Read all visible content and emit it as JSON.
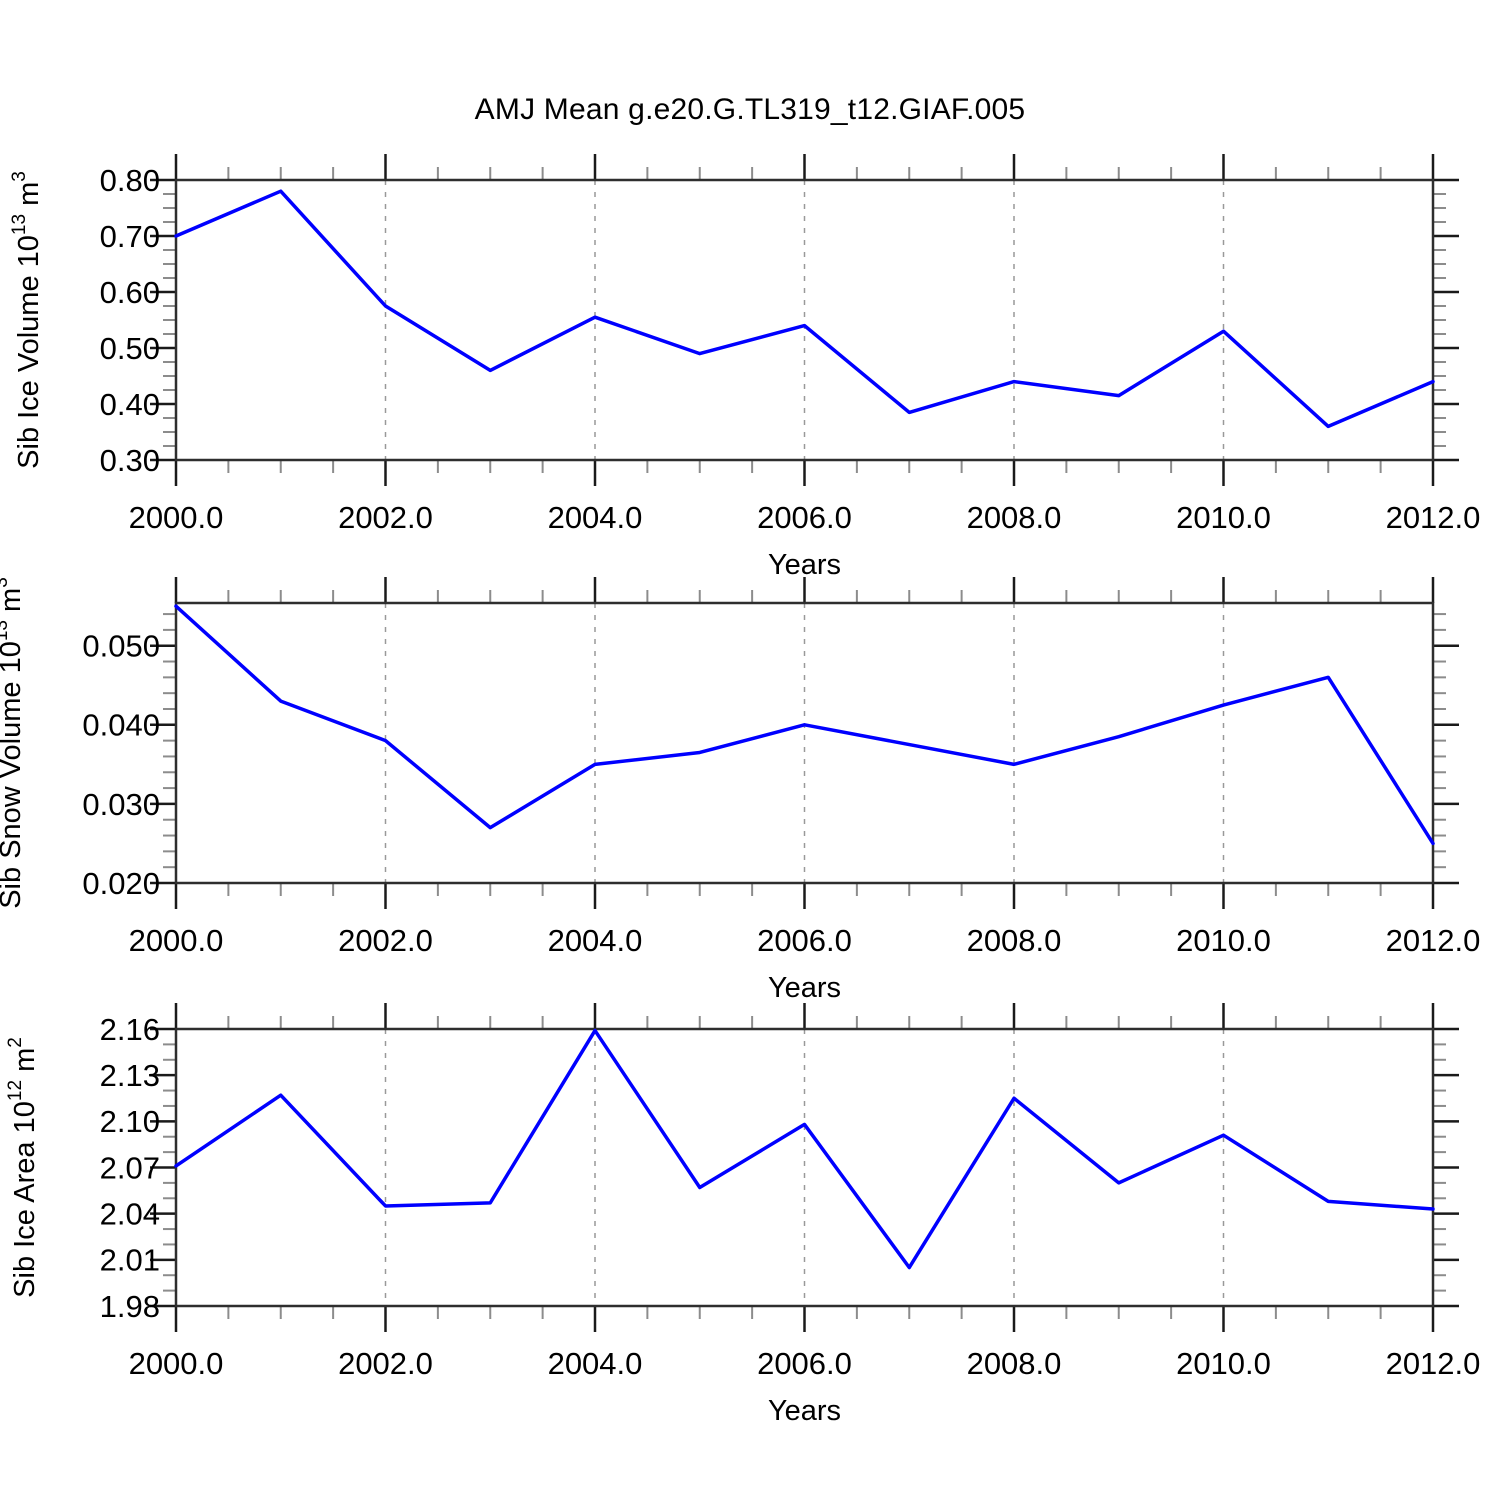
{
  "title": "AMJ Mean g.e20.G.TL319_t12.GIAF.005",
  "colors": {
    "line": "#0000ff",
    "frame": "#2e2e2e",
    "major_tick": "#1a1a1a",
    "minor_tick": "#8c8c8c",
    "grid": "#999999",
    "text": "#000000"
  },
  "chart_data": [
    {
      "type": "line",
      "ylabel_text": "Sib Ice Volume 10^13 m^3",
      "ylabel_parts": [
        {
          "t": "Sib Ice Volume 10"
        },
        {
          "t": "13",
          "sup": true
        },
        {
          "t": " m"
        },
        {
          "t": "3",
          "sup": true
        }
      ],
      "xlabel": "Years",
      "x": [
        2000,
        2001,
        2002,
        2003,
        2004,
        2005,
        2006,
        2007,
        2008,
        2009,
        2010,
        2011,
        2012
      ],
      "values": [
        0.7,
        0.78,
        0.575,
        0.46,
        0.555,
        0.49,
        0.54,
        0.385,
        0.44,
        0.415,
        0.53,
        0.36,
        0.44
      ],
      "xlim": [
        2000,
        2012
      ],
      "ylim": [
        0.3,
        0.8
      ],
      "ytick_values": [
        0.3,
        0.4,
        0.5,
        0.6,
        0.7,
        0.8
      ],
      "ytick_labels": [
        "0.30",
        "0.40",
        "0.50",
        "0.60",
        "0.70",
        "0.80"
      ],
      "yminor_step": 0.025,
      "xtick_values": [
        2000,
        2002,
        2004,
        2006,
        2008,
        2010,
        2012
      ],
      "xtick_labels": [
        "2000.0",
        "2002.0",
        "2004.0",
        "2006.0",
        "2008.0",
        "2010.0",
        "2012.0"
      ],
      "xminor_step": 0.5,
      "grid_x": [
        2002,
        2004,
        2006,
        2008,
        2010
      ],
      "grid_on": true,
      "legend": null
    },
    {
      "type": "line",
      "ylabel_text": "Sib Snow Volume 10^13 m^3",
      "ylabel_parts": [
        {
          "t": "Sib Snow Volume 10"
        },
        {
          "t": "13",
          "sup": true
        },
        {
          "t": " m"
        },
        {
          "t": "3",
          "sup": true
        }
      ],
      "xlabel": "Years",
      "x": [
        2000,
        2001,
        2002,
        2003,
        2004,
        2005,
        2006,
        2007,
        2008,
        2009,
        2010,
        2011,
        2012
      ],
      "values": [
        0.055,
        0.043,
        0.038,
        0.027,
        0.035,
        0.0365,
        0.04,
        0.0375,
        0.035,
        0.0385,
        0.0425,
        0.046,
        0.025
      ],
      "xlim": [
        2000,
        2012
      ],
      "ylim": [
        0.02,
        0.0554
      ],
      "ytick_values": [
        0.02,
        0.03,
        0.04,
        0.05
      ],
      "ytick_labels": [
        "0.020",
        "0.030",
        "0.040",
        "0.050"
      ],
      "yminor_step": 0.002,
      "xtick_values": [
        2000,
        2002,
        2004,
        2006,
        2008,
        2010,
        2012
      ],
      "xtick_labels": [
        "2000.0",
        "2002.0",
        "2004.0",
        "2006.0",
        "2008.0",
        "2010.0",
        "2012.0"
      ],
      "xminor_step": 0.5,
      "grid_x": [
        2002,
        2004,
        2006,
        2008,
        2010
      ],
      "grid_on": true,
      "legend": null
    },
    {
      "type": "line",
      "ylabel_text": "Sib Ice Area 10^12 m^2",
      "ylabel_parts": [
        {
          "t": "Sib Ice Area 10"
        },
        {
          "t": "12",
          "sup": true
        },
        {
          "t": " m"
        },
        {
          "t": "2",
          "sup": true
        }
      ],
      "xlabel": "Years",
      "x": [
        2000,
        2001,
        2002,
        2003,
        2004,
        2005,
        2006,
        2007,
        2008,
        2009,
        2010,
        2011,
        2012
      ],
      "values": [
        2.071,
        2.117,
        2.045,
        2.047,
        2.159,
        2.057,
        2.098,
        2.005,
        2.115,
        2.06,
        2.091,
        2.048,
        2.043
      ],
      "xlim": [
        2000,
        2012
      ],
      "ylim": [
        1.98,
        2.16
      ],
      "ytick_values": [
        1.98,
        2.01,
        2.04,
        2.07,
        2.1,
        2.13,
        2.16
      ],
      "ytick_labels": [
        "1.98",
        "2.01",
        "2.04",
        "2.07",
        "2.10",
        "2.13",
        "2.16"
      ],
      "yminor_step": 0.01,
      "xtick_values": [
        2000,
        2002,
        2004,
        2006,
        2008,
        2010,
        2012
      ],
      "xtick_labels": [
        "2000.0",
        "2002.0",
        "2004.0",
        "2006.0",
        "2008.0",
        "2010.0",
        "2012.0"
      ],
      "xminor_step": 0.5,
      "grid_x": [
        2002,
        2004,
        2006,
        2008,
        2010
      ],
      "grid_on": true,
      "legend": null
    }
  ]
}
